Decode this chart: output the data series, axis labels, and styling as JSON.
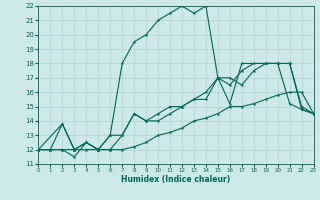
{
  "xlabel": "Humidex (Indice chaleur)",
  "bg_color": "#cce8e8",
  "line_color": "#006655",
  "grid_color": "#aacccc",
  "xlim": [
    0,
    23
  ],
  "ylim": [
    11,
    22
  ],
  "xticks": [
    0,
    1,
    2,
    3,
    4,
    5,
    6,
    7,
    8,
    9,
    10,
    11,
    12,
    13,
    14,
    15,
    16,
    17,
    18,
    19,
    20,
    21,
    22,
    23
  ],
  "yticks": [
    11,
    12,
    13,
    14,
    15,
    16,
    17,
    18,
    19,
    20,
    21,
    22
  ],
  "curve_peak": {
    "x": [
      0,
      2,
      3,
      4,
      5,
      6,
      7,
      8,
      9,
      10,
      11,
      12,
      13,
      14,
      15,
      16,
      17,
      19,
      20,
      21,
      22,
      23
    ],
    "y": [
      12,
      13.8,
      12,
      12.5,
      12,
      13,
      18,
      19.5,
      20.0,
      21.0,
      21.5,
      22.0,
      21.5,
      22.0,
      17.0,
      15.2,
      18.0,
      18.0,
      18.0,
      15.2,
      14.8,
      14.5
    ]
  },
  "curve_upper": {
    "x": [
      0,
      1,
      2,
      3,
      4,
      5,
      6,
      7,
      8,
      9,
      10,
      11,
      12,
      13,
      14,
      15,
      16,
      17,
      18,
      19,
      20,
      21,
      22,
      23
    ],
    "y": [
      12,
      12,
      13.8,
      12,
      12.5,
      12,
      13,
      13,
      14.5,
      14,
      14.5,
      15,
      15,
      15.5,
      16,
      17,
      16.5,
      17.5,
      18,
      18,
      18,
      18,
      15,
      14.5
    ]
  },
  "curve_mid": {
    "x": [
      0,
      1,
      2,
      3,
      4,
      5,
      6,
      7,
      8,
      9,
      10,
      11,
      12,
      13,
      14,
      15,
      16,
      17,
      18,
      19,
      20,
      21,
      22,
      23
    ],
    "y": [
      12,
      12,
      12,
      11.5,
      12.5,
      12,
      12,
      13,
      14.5,
      14,
      14,
      14.5,
      15,
      15.5,
      15.5,
      17,
      17,
      16.5,
      17.5,
      18,
      18,
      18,
      14.8,
      14.5
    ]
  },
  "curve_base": {
    "x": [
      0,
      1,
      2,
      3,
      4,
      5,
      6,
      7,
      8,
      9,
      10,
      11,
      12,
      13,
      14,
      15,
      16,
      17,
      18,
      19,
      20,
      21,
      22,
      23
    ],
    "y": [
      12,
      12,
      12,
      12,
      12,
      12,
      12,
      12,
      12.2,
      12.5,
      13,
      13.2,
      13.5,
      14,
      14.2,
      14.5,
      15,
      15,
      15.2,
      15.5,
      15.8,
      16,
      16,
      14.5
    ]
  }
}
